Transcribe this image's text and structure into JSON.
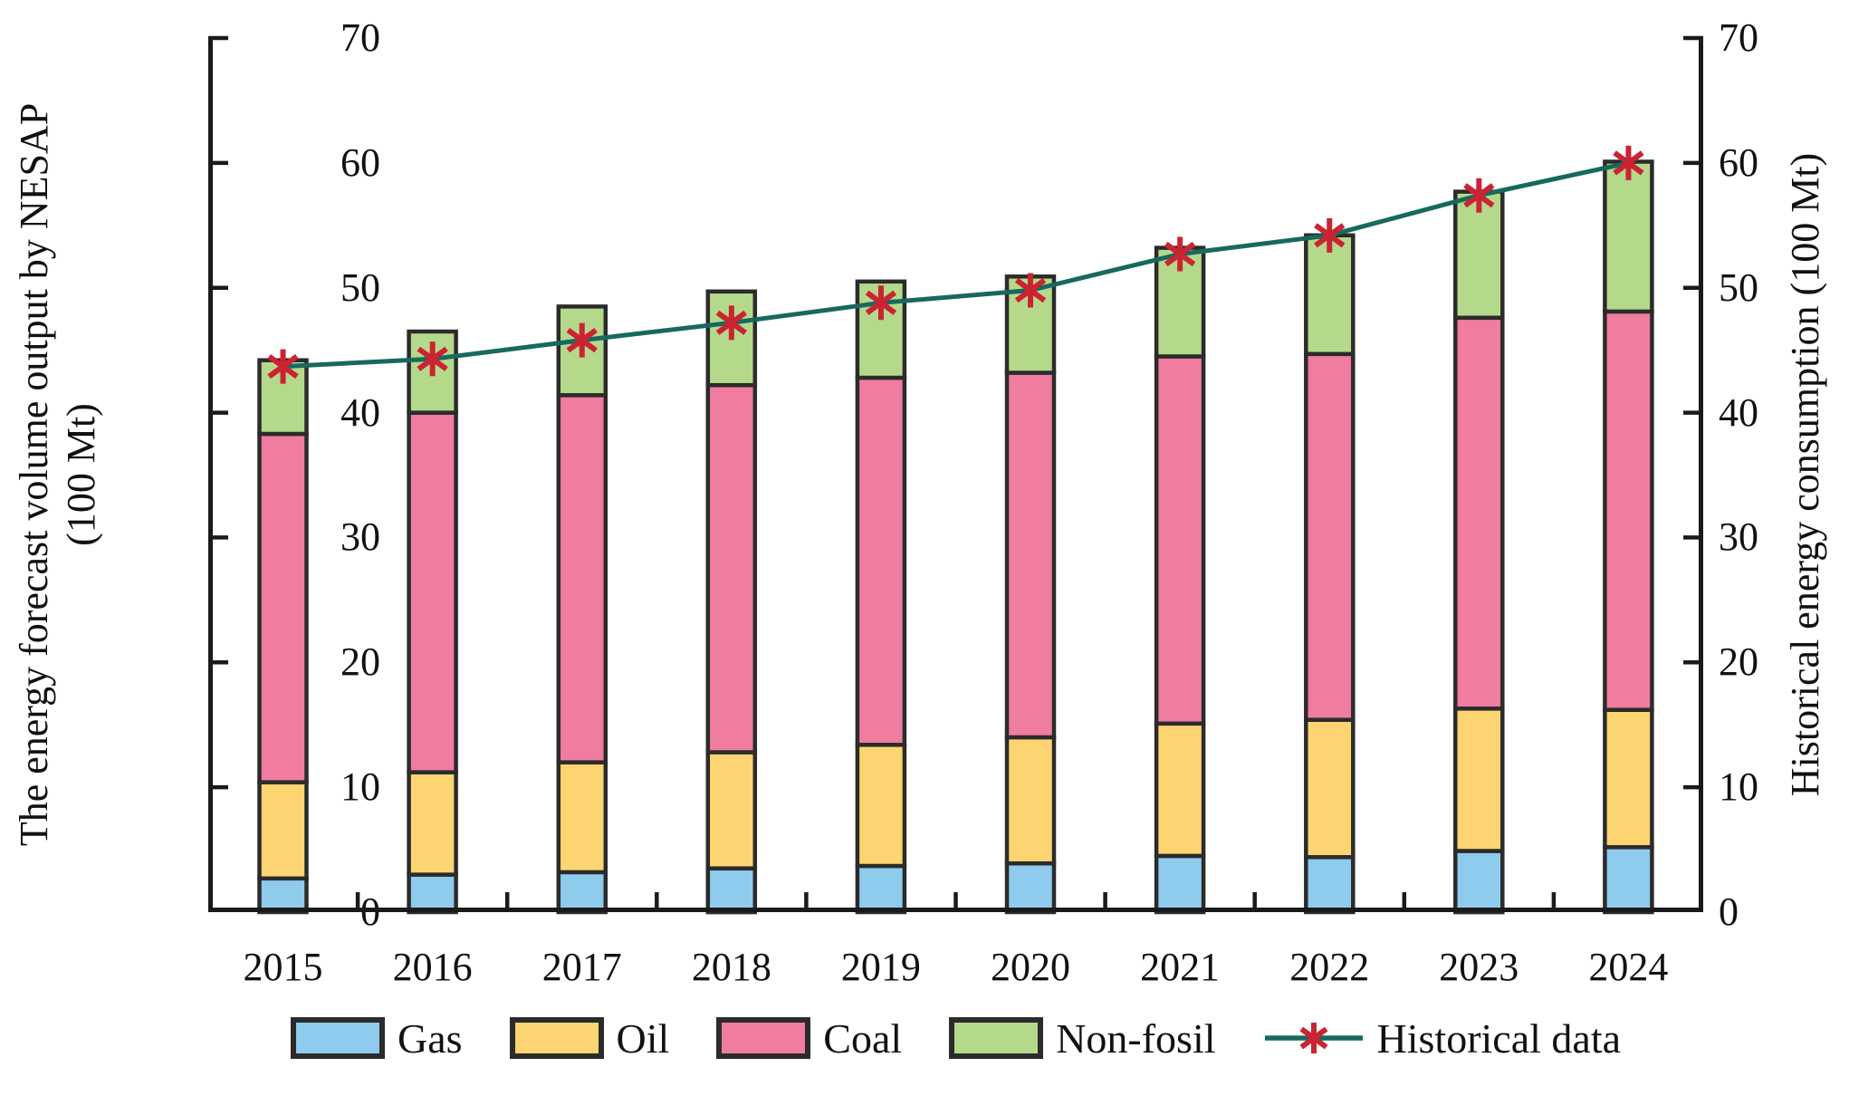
{
  "figure": {
    "left_axis_title_line1": "The energy forecast volume output by NESAP",
    "left_axis_title_line2": "(100 Mt)",
    "right_axis_title": "Historical energy consumption (100 Mt)"
  },
  "chart_data": {
    "type": "bar",
    "stacked": true,
    "title": "",
    "categories": [
      "2015",
      "2016",
      "2017",
      "2018",
      "2019",
      "2020",
      "2021",
      "2022",
      "2023",
      "2024"
    ],
    "series": [
      {
        "name": "Gas",
        "color": "#8ecbed",
        "values": [
          2.7,
          3.0,
          3.2,
          3.5,
          3.7,
          3.9,
          4.5,
          4.4,
          4.9,
          5.2
        ]
      },
      {
        "name": "Oil",
        "color": "#fcd572",
        "values": [
          7.7,
          8.2,
          8.8,
          9.3,
          9.7,
          10.1,
          10.6,
          11.0,
          11.4,
          11.0
        ]
      },
      {
        "name": "Coal",
        "color": "#f07ca0",
        "values": [
          27.9,
          28.8,
          29.4,
          29.4,
          29.4,
          29.2,
          29.4,
          29.3,
          31.3,
          31.9
        ]
      },
      {
        "name": "Non-fosil",
        "color": "#b5d98b",
        "values": [
          5.9,
          6.5,
          7.1,
          7.5,
          7.7,
          7.7,
          8.7,
          9.5,
          10.1,
          12.0
        ]
      }
    ],
    "bar_totals": [
      44.2,
      46.5,
      48.5,
      49.7,
      50.5,
      50.9,
      53.2,
      54.2,
      57.7,
      60.1
    ],
    "line_series": {
      "name": "Historical data",
      "color": "#17695f",
      "marker": "asterisk",
      "marker_color": "#cc2333",
      "values": [
        43.7,
        44.3,
        45.8,
        47.2,
        48.8,
        49.8,
        52.7,
        54.2,
        57.4,
        60.0
      ]
    },
    "ylabel_left": "The energy forecast volume output by NESAP (100 Mt)",
    "ylabel_right": "Historical energy consumption (100 Mt)",
    "ylim": [
      0,
      70
    ],
    "yticks": [
      0,
      10,
      20,
      30,
      40,
      50,
      60,
      70
    ],
    "grid": false,
    "legend_position": "bottom",
    "axis_color": "#1a1a1a",
    "bar_border_color": "#2b2b2b"
  }
}
